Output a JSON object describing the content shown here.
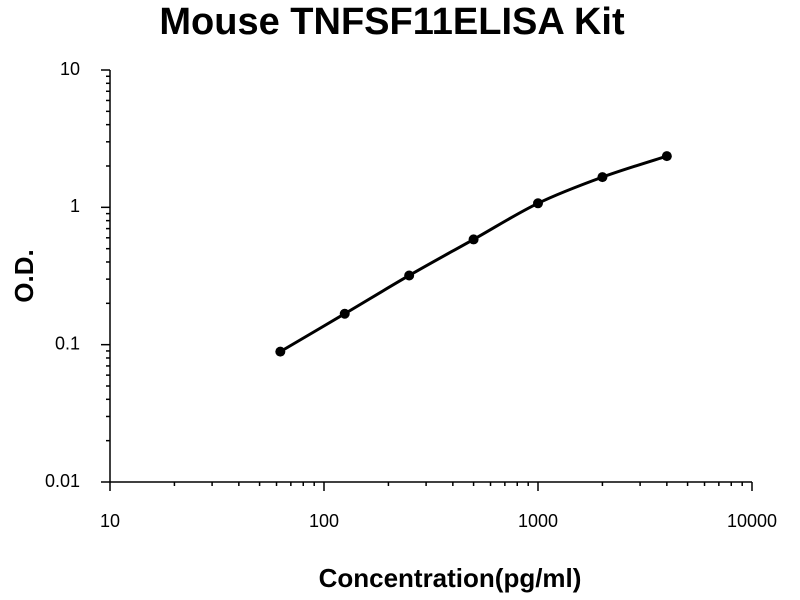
{
  "chart_data": {
    "type": "line",
    "title": "Mouse TNFSF11ELISA Kit",
    "x_label": "Concentration(pg/ml)",
    "y_label": "O.D.",
    "x": [
      62.5,
      125,
      250,
      500,
      1000,
      2000,
      4000
    ],
    "series": [
      {
        "color": "#000000",
        "values": [
          0.089,
          0.168,
          0.319,
          0.584,
          1.07,
          1.66,
          2.36
        ]
      }
    ],
    "xscale": "log",
    "yscale": "log",
    "xlim": [
      10,
      10000
    ],
    "xticks": [
      10,
      100,
      1000,
      10000
    ],
    "ylim": [
      0.01,
      10
    ],
    "yticks": [
      0.01,
      0.1,
      1,
      10
    ],
    "grid": false
  }
}
